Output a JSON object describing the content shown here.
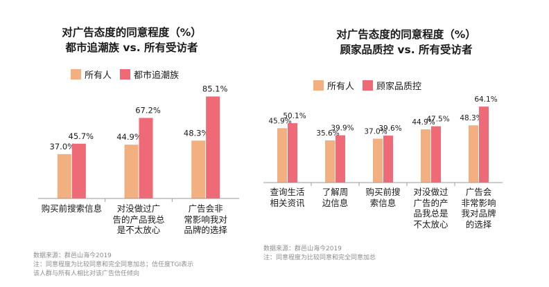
{
  "colors": {
    "all": "#f2b081",
    "group": "#ee6a76"
  },
  "chart_data": [
    {
      "type": "bar",
      "title_lines": [
        "对广告态度的同意程度（%）",
        "都市追潮族 vs. 所有受访者"
      ],
      "series": [
        {
          "name": "所有人",
          "values": [
            37.0,
            44.9,
            48.3
          ]
        },
        {
          "name": "都市追潮族",
          "values": [
            45.7,
            67.2,
            85.1
          ]
        }
      ],
      "categories": [
        "购买前搜索信息",
        "对没做过广\n告的产品我总\n是不太放心",
        "广告会非\n常影响我对\n品牌的选择"
      ],
      "data_labels": [
        [
          "37.0%",
          "44.9%",
          "48.3%"
        ],
        [
          "45.7%",
          "67.2%",
          "85.1%"
        ]
      ],
      "ylim": [
        0,
        90
      ],
      "grid": false,
      "legend": "top-left",
      "source": "数据来源：群邑山海今2019",
      "notes": [
        "注：同意程度为比较同意和完全同意加总；信任度TGI表示",
        "该人群与所有人相比对该广告信任倾向"
      ]
    },
    {
      "type": "bar",
      "title_lines": [
        "对广告态度的同意程度（%）",
        "顾家品质控 vs. 所有受访者"
      ],
      "series": [
        {
          "name": "所有人",
          "values": [
            45.9,
            35.6,
            37.0,
            44.9,
            48.3
          ]
        },
        {
          "name": "顾家品质控",
          "values": [
            50.1,
            39.9,
            39.6,
            47.5,
            64.1
          ]
        }
      ],
      "categories": [
        "查询生活\n相关资讯",
        "了解周\n边信息",
        "购买前搜\n索信息",
        "对没做过\n广告的产\n品我总是\n不太放心",
        "广告会\n非常影响\n我对品牌\n的选择"
      ],
      "data_labels": [
        [
          "45.9%",
          "35.6%",
          "37.0%",
          "44.9%",
          "48.3%"
        ],
        [
          "50.1%",
          "39.9%",
          "39.6%",
          "47.5%",
          "64.1%"
        ]
      ],
      "ylim": [
        0,
        70
      ],
      "grid": false,
      "legend": "top-left",
      "source": "数据来源：群邑山海今2019",
      "notes": [
        "注：同意程度为比较同意和完全同意加总"
      ]
    }
  ]
}
